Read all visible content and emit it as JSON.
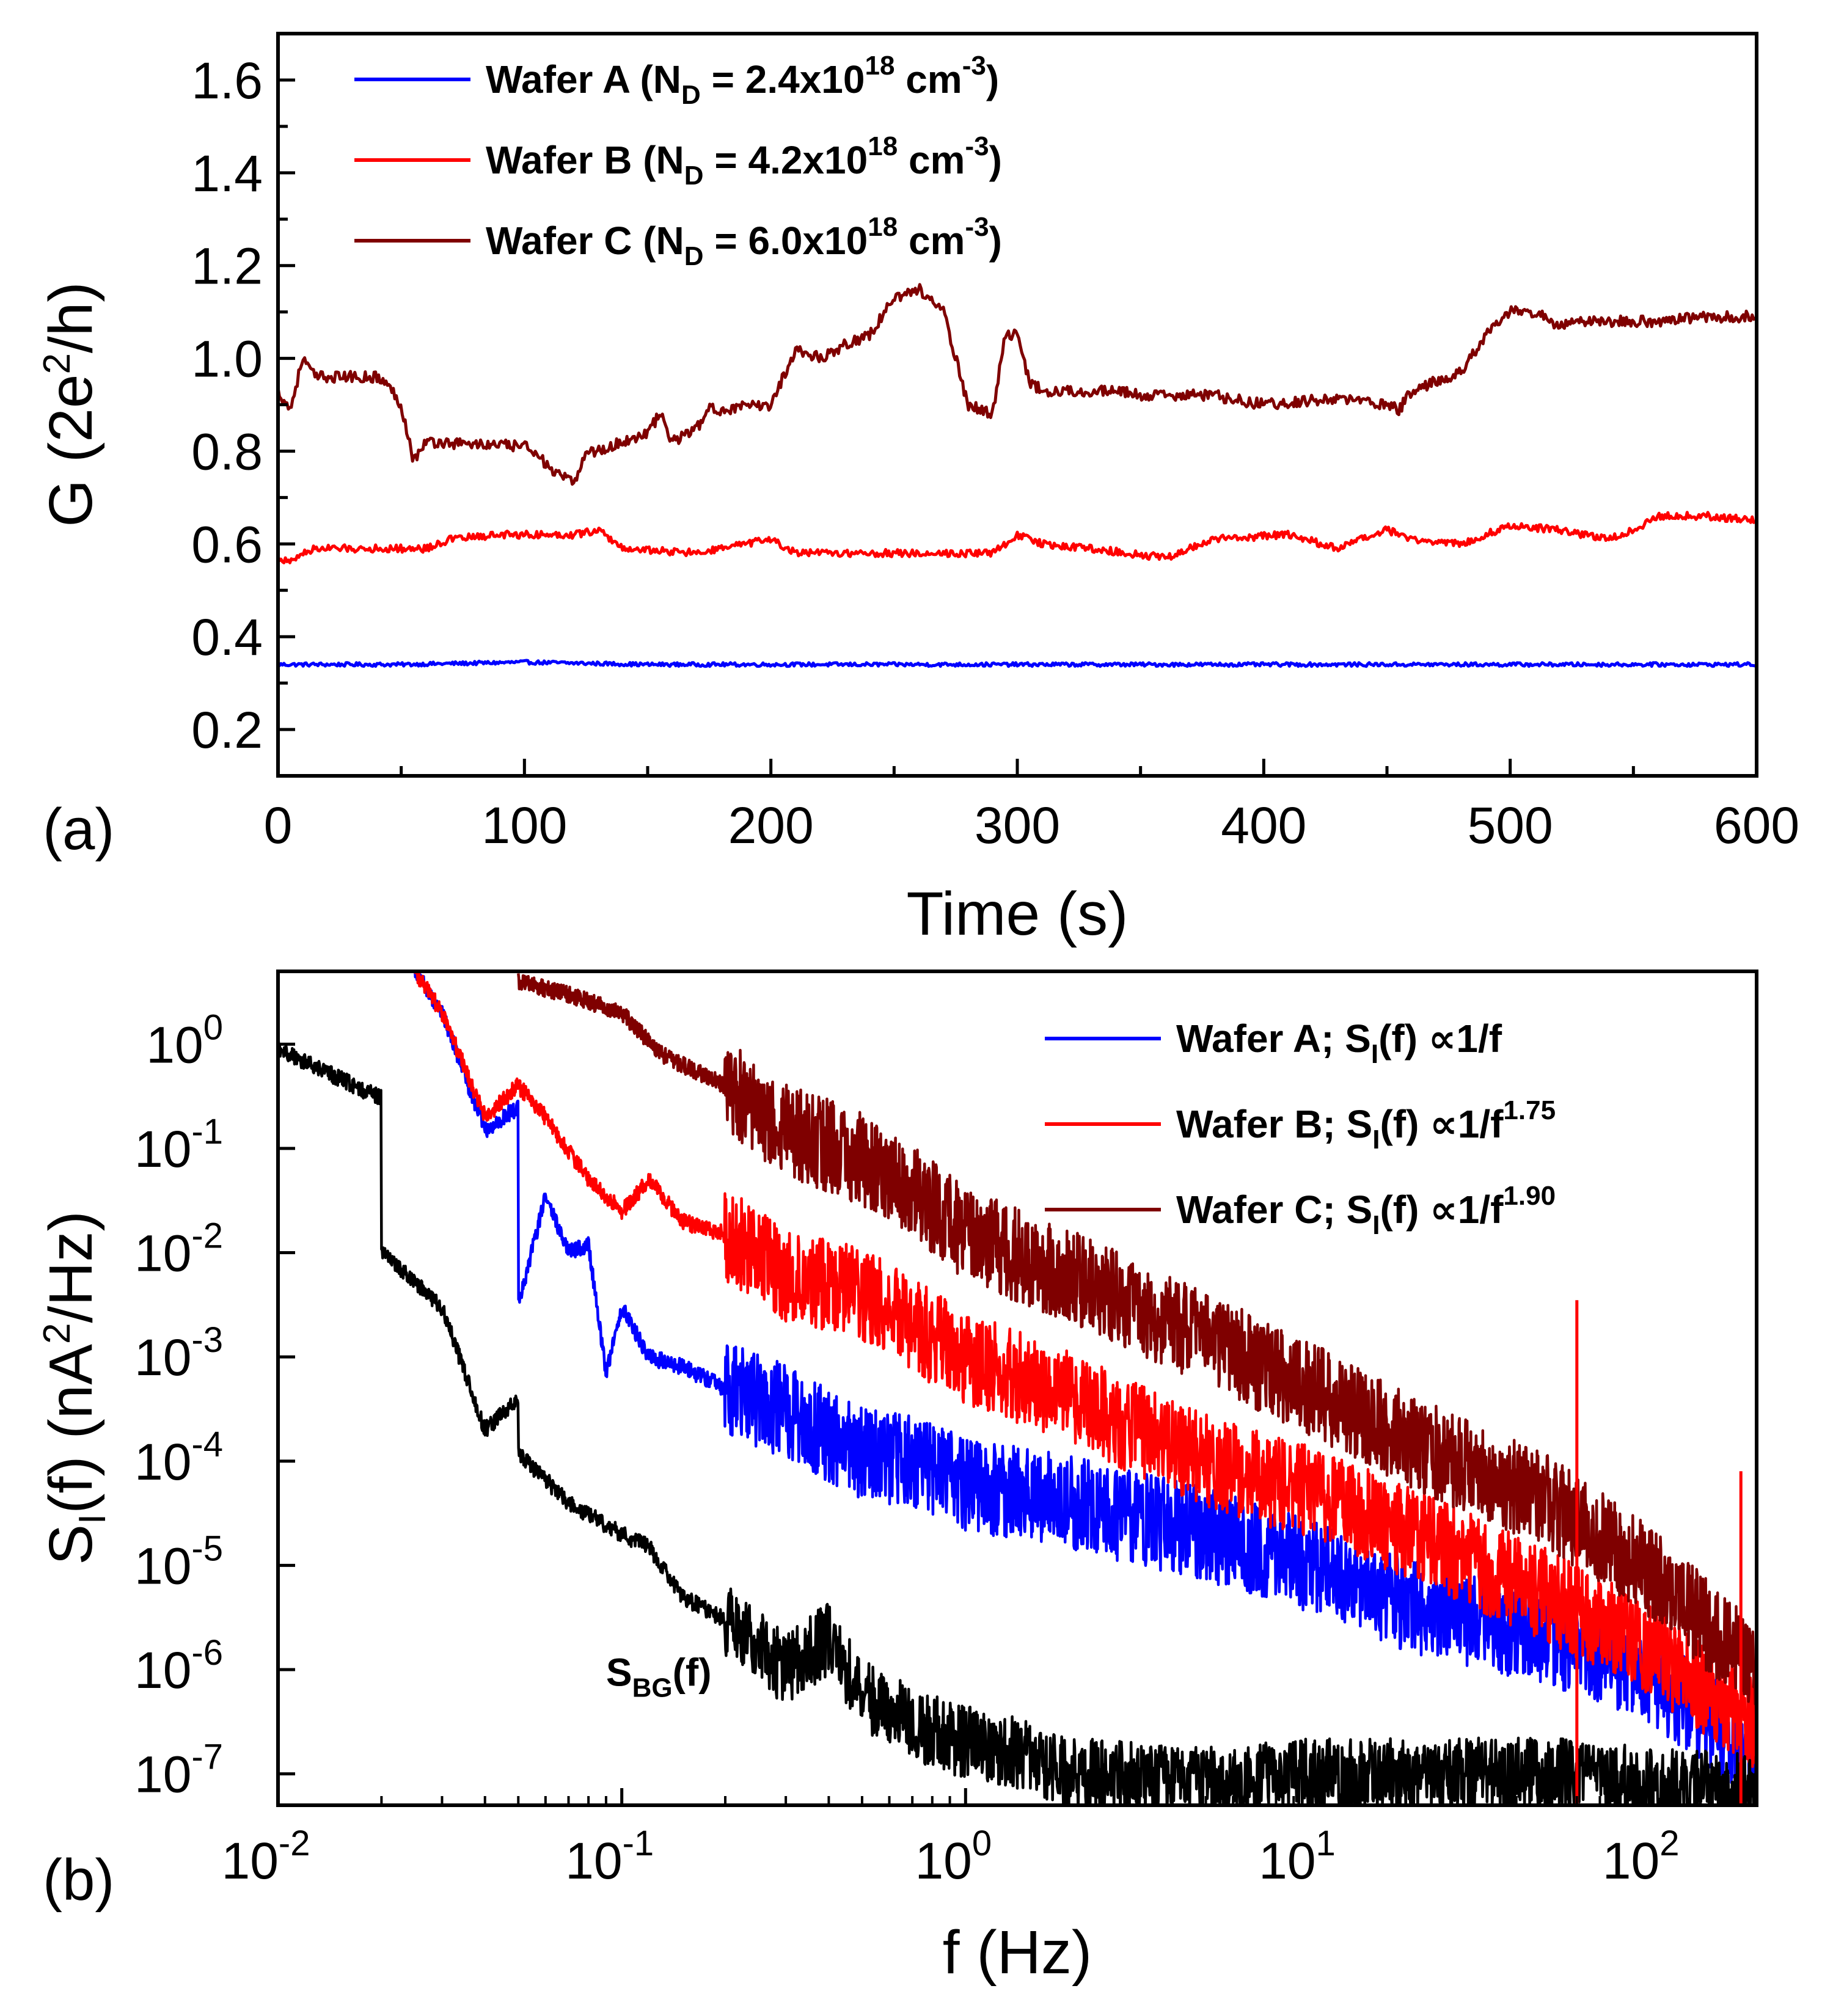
{
  "colors": {
    "wafer_a": "#0000ff",
    "wafer_b": "#ff0000",
    "wafer_c": "#7f0000",
    "background_noise": "#000000"
  },
  "chart_data": [
    {
      "panel_label": "(a)",
      "type": "line",
      "xlabel": "Time (s)",
      "ylabel": "G (2e²/h)",
      "ylabel_parts": {
        "pre": "G (2e",
        "sup": "2",
        "post": "/h)"
      },
      "xlim": [
        0,
        600
      ],
      "ylim": [
        0.1,
        1.7
      ],
      "x_ticks": [
        0,
        100,
        200,
        300,
        400,
        500,
        600
      ],
      "y_ticks": [
        0.2,
        0.4,
        0.6,
        0.8,
        1.0,
        1.2,
        1.4,
        1.6
      ],
      "y_tick_labels": [
        "0.2",
        "0.4",
        "0.6",
        "0.8",
        "1.0",
        "1.2",
        "1.4",
        "1.6"
      ],
      "x_minor_ticks": [
        50,
        150,
        250,
        350,
        450,
        550
      ],
      "y_minor_ticks": [
        0.3,
        0.5,
        0.7,
        0.9,
        1.1,
        1.3,
        1.5
      ],
      "legend_position": "top-left",
      "series": [
        {
          "name": "Wafer A (N_D = 2.4x10^18 cm^-3)",
          "legend_parts": [
            "Wafer A (N",
            "D",
            " = 2.4x10",
            "18",
            " cm",
            "-3",
            ")"
          ],
          "color_key": "wafer_a",
          "noise": 0.004,
          "x": [
            0,
            50,
            100,
            150,
            200,
            250,
            300,
            350,
            400,
            450,
            500,
            550,
            600
          ],
          "y": [
            0.34,
            0.34,
            0.345,
            0.34,
            0.34,
            0.34,
            0.34,
            0.34,
            0.34,
            0.34,
            0.34,
            0.34,
            0.34
          ]
        },
        {
          "name": "Wafer B (N_D = 4.2x10^18 cm^-3)",
          "legend_parts": [
            "Wafer B (N",
            "D",
            " = 4.2x10",
            "18",
            " cm",
            "-3",
            ")"
          ],
          "color_key": "wafer_b",
          "noise": 0.008,
          "x": [
            0,
            5,
            10,
            15,
            60,
            70,
            90,
            120,
            130,
            140,
            170,
            180,
            200,
            210,
            230,
            290,
            300,
            310,
            330,
            360,
            380,
            410,
            430,
            450,
            460,
            480,
            500,
            520,
            540,
            550,
            560,
            580,
            600
          ],
          "y": [
            0.57,
            0.56,
            0.58,
            0.59,
            0.59,
            0.61,
            0.62,
            0.62,
            0.63,
            0.59,
            0.58,
            0.59,
            0.61,
            0.58,
            0.58,
            0.58,
            0.62,
            0.6,
            0.59,
            0.57,
            0.61,
            0.62,
            0.59,
            0.63,
            0.61,
            0.6,
            0.64,
            0.63,
            0.61,
            0.63,
            0.66,
            0.66,
            0.65
          ]
        },
        {
          "name": "Wafer C (N_D = 6.0x10^18 cm^-3)",
          "legend_parts": [
            "Wafer C (N",
            "D",
            " = 6.0x10",
            "18",
            " cm",
            "-3",
            ")"
          ],
          "color_key": "wafer_c",
          "noise": 0.012,
          "x": [
            0,
            5,
            10,
            15,
            40,
            45,
            50,
            55,
            60,
            100,
            105,
            110,
            120,
            125,
            130,
            150,
            155,
            160,
            170,
            175,
            180,
            200,
            205,
            210,
            220,
            230,
            240,
            250,
            260,
            270,
            275,
            280,
            290,
            295,
            300,
            305,
            310,
            340,
            350,
            380,
            400,
            420,
            440,
            455,
            460,
            480,
            490,
            500,
            510,
            520,
            530,
            560,
            580,
            600
          ],
          "y": [
            0.93,
            0.89,
            1.0,
            0.96,
            0.96,
            0.94,
            0.9,
            0.78,
            0.82,
            0.81,
            0.8,
            0.76,
            0.73,
            0.8,
            0.8,
            0.84,
            0.88,
            0.82,
            0.85,
            0.89,
            0.89,
            0.9,
            0.96,
            1.02,
            1.0,
            1.03,
            1.05,
            1.13,
            1.15,
            1.1,
            1.0,
            0.9,
            0.88,
            1.05,
            1.05,
            0.95,
            0.93,
            0.93,
            0.92,
            0.92,
            0.9,
            0.91,
            0.91,
            0.89,
            0.93,
            0.97,
            1.05,
            1.1,
            1.1,
            1.07,
            1.08,
            1.08,
            1.09,
            1.09
          ]
        }
      ]
    },
    {
      "panel_label": "(b)",
      "type": "line",
      "xlabel": "f (Hz)",
      "ylabel": "S_I(f) (nA²/Hz)",
      "ylabel_parts": {
        "pre": "S",
        "sub": "I",
        "mid": "(f) (nA",
        "sup": "2",
        "post": "/Hz)"
      },
      "x_scale": "log",
      "y_scale": "log",
      "xlim": [
        0.01,
        200
      ],
      "ylim": [
        5e-08,
        5
      ],
      "x_ticks": [
        0.01,
        0.1,
        1,
        10,
        100
      ],
      "x_tick_exponents": [
        "-2",
        "-1",
        "0",
        "1",
        "2"
      ],
      "y_ticks": [
        1e-07,
        1e-06,
        1e-05,
        0.0001,
        0.001,
        0.01,
        0.1,
        1
      ],
      "y_tick_exponents": [
        "-7",
        "-6",
        "-5",
        "-4",
        "-3",
        "-2",
        "-1",
        "0"
      ],
      "tick_base": "10",
      "legend_position": "top-right",
      "annotation": {
        "text_parts": [
          "S",
          "BG",
          "(f)"
        ],
        "text": "S_BG(f)",
        "x": 0.09,
        "y": 7e-07
      },
      "series": [
        {
          "name": "Wafer A; S_I(f) ∝1/f",
          "legend_parts": [
            "Wafer A; S",
            "I",
            "(f) ∝1/f",
            ""
          ],
          "color_key": "wafer_a",
          "noise": 0.45,
          "x": [
            0.025,
            0.03,
            0.04,
            0.05,
            0.05,
            0.06,
            0.07,
            0.08,
            0.09,
            0.1,
            0.12,
            0.15,
            0.2,
            0.3,
            0.5,
            0.7,
            1,
            2,
            5,
            10,
            20,
            50,
            100,
            200
          ],
          "y": [
            5,
            2,
            0.15,
            0.25,
            0.003,
            0.035,
            0.01,
            0.012,
            0.0007,
            0.003,
            0.001,
            0.0008,
            0.0005,
            0.0003,
            0.00012,
            0.0001,
            6e-05,
            4e-05,
            2e-05,
            1e-05,
            4e-06,
            2e-06,
            8e-07,
            1.5e-07
          ]
        },
        {
          "name": "Wafer B; S_I(f) ∝1/f^1.75",
          "legend_parts": [
            "Wafer B; S",
            "I",
            "(f) ∝1/f",
            "1.75"
          ],
          "color_key": "wafer_b",
          "noise": 0.45,
          "x": [
            0.025,
            0.03,
            0.04,
            0.05,
            0.06,
            0.08,
            0.1,
            0.12,
            0.15,
            0.2,
            0.3,
            0.5,
            0.7,
            1,
            2,
            5,
            10,
            20,
            50,
            100,
            200
          ],
          "y": [
            5,
            2,
            0.2,
            0.4,
            0.2,
            0.05,
            0.025,
            0.05,
            0.02,
            0.015,
            0.006,
            0.004,
            0.002,
            0.001,
            0.0004,
            0.0001,
            5e-05,
            2e-05,
            5e-06,
            1.5e-06,
            3e-07
          ]
        },
        {
          "name": "Wafer C; S_I(f) ∝1/f^1.90",
          "legend_parts": [
            "Wafer C; S",
            "I",
            "(f) ∝1/f",
            "1.90"
          ],
          "color_key": "wafer_c",
          "noise": 0.45,
          "x": [
            0.05,
            0.07,
            0.1,
            0.13,
            0.2,
            0.3,
            0.5,
            0.7,
            1,
            2,
            5,
            10,
            20,
            50,
            100,
            200
          ],
          "y": [
            4,
            3,
            2,
            0.8,
            0.4,
            0.15,
            0.08,
            0.04,
            0.015,
            0.006,
            0.0015,
            0.0005,
            0.00015,
            4e-05,
            8e-06,
            1e-06
          ]
        },
        {
          "name": "S_BG(f)",
          "show_in_legend": false,
          "color_key": "background_noise",
          "noise": 0.35,
          "x": [
            0.01,
            0.02,
            0.02,
            0.03,
            0.04,
            0.05,
            0.05,
            0.07,
            0.1,
            0.12,
            0.15,
            0.2,
            0.3,
            0.4,
            0.5,
            0.7,
            1,
            1.5,
            2,
            5,
            10,
            20,
            50,
            100,
            200
          ],
          "y": [
            0.9,
            0.3,
            0.01,
            0.003,
            0.0002,
            0.0004,
            0.00012,
            4e-05,
            2e-05,
            1.5e-05,
            5e-06,
            3e-06,
            1e-06,
            2e-06,
            6e-07,
            3e-07,
            2e-07,
            1.5e-07,
            1e-07,
            8e-08,
            1e-07,
            1e-07,
            1e-07,
            8e-08,
            7e-08
          ]
        }
      ],
      "spikes": [
        {
          "x": 60,
          "y": 0.0035,
          "color_key": "wafer_b"
        },
        {
          "x": 180,
          "y": 8e-05,
          "color_key": "wafer_b"
        }
      ]
    }
  ]
}
